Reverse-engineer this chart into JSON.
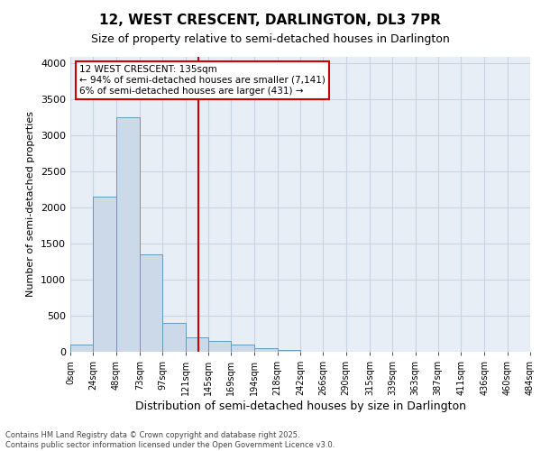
{
  "title1": "12, WEST CRESCENT, DARLINGTON, DL3 7PR",
  "title2": "Size of property relative to semi-detached houses in Darlington",
  "xlabel": "Distribution of semi-detached houses by size in Darlington",
  "ylabel": "Number of semi-detached properties",
  "bin_labels": [
    "0sqm",
    "24sqm",
    "48sqm",
    "73sqm",
    "97sqm",
    "121sqm",
    "145sqm",
    "169sqm",
    "194sqm",
    "218sqm",
    "242sqm",
    "266sqm",
    "290sqm",
    "315sqm",
    "339sqm",
    "363sqm",
    "387sqm",
    "411sqm",
    "436sqm",
    "460sqm",
    "484sqm"
  ],
  "bin_edges": [
    0,
    24,
    48,
    73,
    97,
    121,
    145,
    169,
    194,
    218,
    242,
    266,
    290,
    315,
    339,
    363,
    387,
    411,
    436,
    460,
    484
  ],
  "bar_heights": [
    100,
    2150,
    3250,
    1350,
    400,
    200,
    150,
    100,
    50,
    30,
    0,
    0,
    0,
    0,
    0,
    0,
    0,
    0,
    0,
    0
  ],
  "bar_color": "#ccd9e8",
  "bar_edge_color": "#6699bb",
  "grid_color": "#c8d4e4",
  "bg_color": "#e8eef6",
  "vline_x": 135,
  "vline_color": "#cc0000",
  "annotation_text": "12 WEST CRESCENT: 135sqm\n← 94% of semi-detached houses are smaller (7,141)\n6% of semi-detached houses are larger (431) →",
  "box_color": "#cc0000",
  "ylim": [
    0,
    4100
  ],
  "yticks": [
    0,
    500,
    1000,
    1500,
    2000,
    2500,
    3000,
    3500,
    4000
  ],
  "footnote1": "Contains HM Land Registry data © Crown copyright and database right 2025.",
  "footnote2": "Contains public sector information licensed under the Open Government Licence v3.0."
}
